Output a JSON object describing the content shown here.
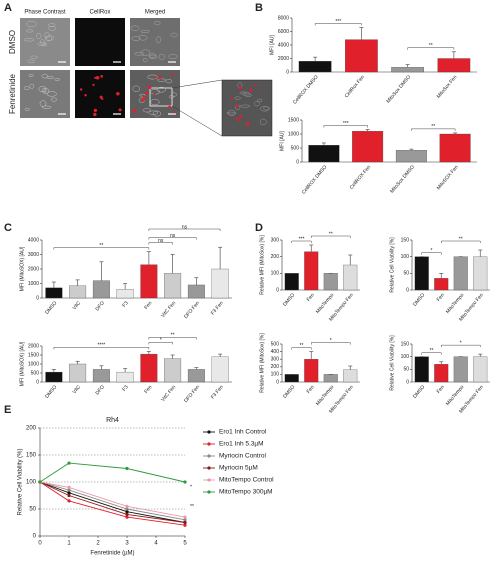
{
  "panels": [
    "A",
    "B",
    "C",
    "D",
    "E"
  ],
  "image_panel": {
    "columns": [
      "Phase Contrast",
      "CellRox",
      "Merged"
    ],
    "rows": [
      "DMSO",
      "Fenretinide"
    ]
  },
  "chart_data": [
    {
      "type": "bar",
      "ylabel": "MFI [AU]",
      "categories": [
        "CellROX DMSO",
        "CellRox Fen",
        "MitoSox DMSO",
        "MitoSox Fen"
      ],
      "values": [
        1600,
        4800,
        700,
        2000
      ],
      "errors": [
        600,
        1800,
        400,
        1000
      ],
      "colors": [
        "#111111",
        "#e0202a",
        "#999999",
        "#e0202a"
      ],
      "ylim": [
        0,
        8000
      ],
      "yticks": [
        0,
        2000,
        4000,
        6000,
        8000
      ],
      "annotations": [
        {
          "label": "***",
          "between": [
            0,
            1
          ]
        },
        {
          "label": "**",
          "between": [
            2,
            3
          ]
        }
      ]
    },
    {
      "type": "bar",
      "ylabel": "MFI [AU]",
      "categories": [
        "CellROX DMSO",
        "CellROX Fen",
        "MitoSox DMSO",
        "MitoSOX Fen"
      ],
      "values": [
        600,
        1100,
        420,
        1000
      ],
      "errors": [
        80,
        60,
        40,
        40
      ],
      "colors": [
        "#111111",
        "#e0202a",
        "#999999",
        "#e0202a"
      ],
      "ylim": [
        0,
        1500
      ],
      "yticks": [
        0,
        500,
        1000,
        1500
      ],
      "annotations": [
        {
          "label": "***",
          "between": [
            0,
            1
          ]
        },
        {
          "label": "**",
          "between": [
            2,
            3
          ]
        }
      ]
    },
    {
      "type": "bar",
      "ylabel": "MFI (MitoSOX) [AU]",
      "categories": [
        "DMSO",
        "VitC",
        "DFO",
        "F3",
        "Fen",
        "VitC Fen",
        "DFO Fen",
        "F3 Fen"
      ],
      "values": [
        700,
        850,
        1200,
        600,
        2300,
        1700,
        900,
        2000
      ],
      "errors": [
        400,
        400,
        1300,
        400,
        900,
        1300,
        500,
        1500
      ],
      "colors": [
        "#111111",
        "#cccccc",
        "#999999",
        "#e8e8e8",
        "#e0202a",
        "#cccccc",
        "#999999",
        "#e8e8e8"
      ],
      "ylim": [
        0,
        4000
      ],
      "yticks": [
        0,
        1000,
        2000,
        3000,
        4000
      ],
      "annotations": [
        {
          "label": "**",
          "between": [
            0,
            4
          ]
        },
        {
          "label": "ns",
          "between": [
            4,
            5
          ]
        },
        {
          "label": "ns",
          "between": [
            4,
            6
          ]
        },
        {
          "label": "ns",
          "between": [
            4,
            7
          ]
        }
      ]
    },
    {
      "type": "bar",
      "ylabel": "MFI (MitoSOX) [AU]",
      "categories": [
        "DMSO",
        "VitC",
        "DFO",
        "F3",
        "Fen",
        "VitC Fen",
        "DFO Fen",
        "F3 Fen"
      ],
      "values": [
        550,
        1000,
        700,
        550,
        1550,
        1300,
        700,
        1400
      ],
      "errors": [
        150,
        150,
        200,
        200,
        150,
        200,
        100,
        150
      ],
      "colors": [
        "#111111",
        "#cccccc",
        "#999999",
        "#e8e8e8",
        "#e0202a",
        "#cccccc",
        "#999999",
        "#e8e8e8"
      ],
      "ylim": [
        0,
        2000
      ],
      "yticks": [
        0,
        500,
        1000,
        1500,
        2000
      ],
      "annotations": [
        {
          "label": "****",
          "between": [
            0,
            4
          ]
        },
        {
          "label": "*",
          "between": [
            4,
            5
          ]
        },
        {
          "label": "**",
          "between": [
            4,
            6
          ]
        }
      ]
    },
    {
      "type": "bar",
      "ylabel": "Relative MFI (MitoSox) [%]",
      "categories": [
        "DMSO",
        "Fen",
        "MitoTempo",
        "MitoTempo Fen"
      ],
      "values": [
        100,
        230,
        100,
        150
      ],
      "errors": [
        0,
        40,
        0,
        60
      ],
      "colors": [
        "#111111",
        "#e0202a",
        "#999999",
        "#dddddd"
      ],
      "ylim": [
        0,
        300
      ],
      "yticks": [
        0,
        100,
        200,
        300
      ],
      "annotations": [
        {
          "label": "***",
          "between": [
            0,
            1
          ]
        },
        {
          "label": "**",
          "between": [
            1,
            3
          ]
        }
      ]
    },
    {
      "type": "bar",
      "ylabel": "Relative Cell Viability [%]",
      "categories": [
        "DMSO",
        "Fen",
        "MitoTempo",
        "MitoTempo Fen"
      ],
      "values": [
        100,
        35,
        100,
        100
      ],
      "errors": [
        0,
        15,
        0,
        20
      ],
      "colors": [
        "#111111",
        "#e0202a",
        "#999999",
        "#dddddd"
      ],
      "ylim": [
        0,
        150
      ],
      "yticks": [
        0,
        50,
        100,
        150
      ],
      "annotations": [
        {
          "label": "*",
          "between": [
            0,
            1
          ]
        },
        {
          "label": "**",
          "between": [
            1,
            3
          ]
        }
      ]
    },
    {
      "type": "bar",
      "ylabel": "Relative MFI (MitoSox) [%]",
      "categories": [
        "DMSO",
        "Fen",
        "MitoTempo",
        "MitoTempo Fen"
      ],
      "values": [
        100,
        300,
        100,
        160
      ],
      "errors": [
        0,
        100,
        0,
        50
      ],
      "colors": [
        "#111111",
        "#e0202a",
        "#999999",
        "#dddddd"
      ],
      "ylim": [
        0,
        500
      ],
      "yticks": [
        0,
        100,
        200,
        300,
        400,
        500
      ],
      "annotations": [
        {
          "label": "**",
          "between": [
            0,
            1
          ]
        },
        {
          "label": "*",
          "between": [
            1,
            3
          ]
        }
      ]
    },
    {
      "type": "bar",
      "ylabel": "Relative Cell Viability [%]",
      "categories": [
        "DMSO",
        "Fen",
        "MitoTempo",
        "MitoTempo Fen"
      ],
      "values": [
        100,
        70,
        100,
        100
      ],
      "errors": [
        0,
        10,
        0,
        10
      ],
      "colors": [
        "#111111",
        "#e0202a",
        "#999999",
        "#dddddd"
      ],
      "ylim": [
        0,
        150
      ],
      "yticks": [
        0,
        50,
        100,
        150
      ],
      "annotations": [
        {
          "label": "**",
          "between": [
            0,
            1
          ]
        },
        {
          "label": "*",
          "between": [
            1,
            3
          ]
        }
      ]
    },
    {
      "type": "line",
      "title": "Rh4",
      "xlabel": "Fenretinide (µM)",
      "ylabel": "Relative Cell Viability (%)",
      "x": [
        0,
        1,
        3,
        5
      ],
      "xlim": [
        0,
        5
      ],
      "xticks": [
        0,
        1,
        2,
        3,
        4,
        5
      ],
      "ylim": [
        0,
        200
      ],
      "yticks": [
        0,
        50,
        100,
        150,
        200
      ],
      "grid": true,
      "series": [
        {
          "name": "Ero1 Inh Control",
          "color": "#111111",
          "values": [
            100,
            80,
            45,
            25
          ]
        },
        {
          "name": "Ero1 Inh 5.3µM",
          "color": "#e0202a",
          "values": [
            100,
            65,
            35,
            20
          ]
        },
        {
          "name": "Myriocin Control",
          "color": "#888888",
          "values": [
            100,
            85,
            50,
            30
          ]
        },
        {
          "name": "Myriocin 5µM",
          "color": "#8b1a1a",
          "values": [
            100,
            75,
            40,
            25
          ]
        },
        {
          "name": "MitoTempo Control",
          "color": "#e89aa8",
          "values": [
            100,
            90,
            55,
            35
          ]
        },
        {
          "name": "MitoTempo 300µM",
          "color": "#2e9b3a",
          "values": [
            100,
            135,
            125,
            100
          ]
        }
      ],
      "annotations": [
        {
          "label": "*"
        },
        {
          "label": "**"
        }
      ]
    }
  ]
}
